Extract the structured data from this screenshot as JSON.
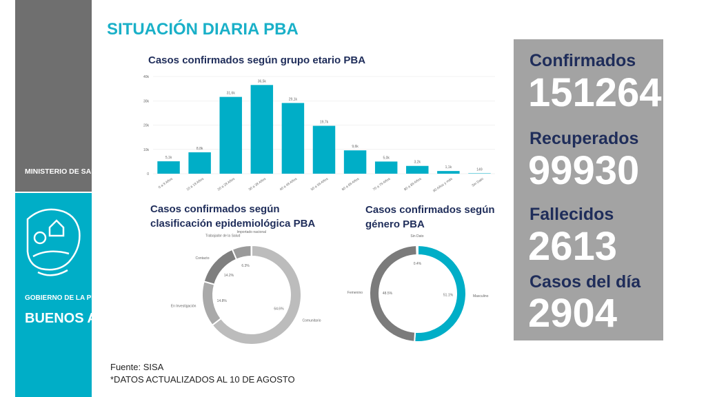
{
  "header": {
    "title": "SITUACIÓN DIARIA PBA"
  },
  "sidebar": {
    "ministry": "MINISTERIO DE SALUD",
    "government": "GOBIERNO DE LA PROVINCIA DE",
    "province": "BUENOS AIRES"
  },
  "chart_data": [
    {
      "type": "bar",
      "title": "Casos confirmados según grupo etario PBA",
      "categories": [
        "0 a 9 Años",
        "10 a 19 Años",
        "20 a 29 Años",
        "30 a 39 Años",
        "40 a 49 Años",
        "50 a 59 Años",
        "60 a 69 Años",
        "70 a 79 Años",
        "80 a 89 Años",
        "90 Años y más",
        "Sin Dato"
      ],
      "values": [
        5100,
        8800,
        31600,
        36500,
        29100,
        19700,
        9600,
        5000,
        3200,
        1100,
        149
      ],
      "value_labels": [
        "5,1k",
        "8,8k",
        "31,6k",
        "36,5k",
        "29,1k",
        "19,7k",
        "9,6k",
        "5,0k",
        "3,2k",
        "1,1k",
        "149"
      ],
      "color": "#00aec7",
      "ylim": [
        0,
        40000
      ],
      "yticks": [
        0,
        {
          "value": 10000,
          "label": "10k"
        },
        {
          "value": 20000,
          "label": "20k"
        },
        {
          "value": 30000,
          "label": "30k"
        },
        {
          "value": 40000,
          "label": "40k"
        }
      ],
      "grid": true
    },
    {
      "type": "donut",
      "title": "Casos confirmados según clasificación epidemiológica PBA",
      "categories": [
        "Comunitario",
        "En Investigación",
        "Contacto",
        "Trabajador de la Salud",
        "Importado nacional"
      ],
      "values": [
        64.6,
        14.8,
        14.2,
        6.3,
        0.1
      ],
      "value_labels": [
        "64.6%",
        "14.8%",
        "14.2%",
        "6.3%",
        null
      ],
      "colors": [
        "#bcbcbc",
        "#a9a9a9",
        "#7f7f7f",
        "#9a9a9a",
        "#d0d0d0"
      ]
    },
    {
      "type": "donut",
      "title": "Casos confirmados según género PBA",
      "categories": [
        "Masculino",
        "Femenino",
        "Sin Dato"
      ],
      "values": [
        51.1,
        48.5,
        0.4
      ],
      "value_labels": [
        "51.1%",
        "48.5%",
        "0.4%"
      ],
      "colors": [
        "#00aec7",
        "#7b7b7b",
        "#bdbdbd"
      ]
    }
  ],
  "stats": [
    {
      "label": "Confirmados",
      "value": "151264"
    },
    {
      "label": "Recuperados",
      "value": "99930"
    },
    {
      "label": "Fallecidos",
      "value": "2613"
    },
    {
      "label": "Casos del día",
      "value": "2904"
    }
  ],
  "footer": {
    "source": "Fuente: SISA",
    "note": "*DATOS ACTUALIZADOS AL 10 DE AGOSTO"
  }
}
